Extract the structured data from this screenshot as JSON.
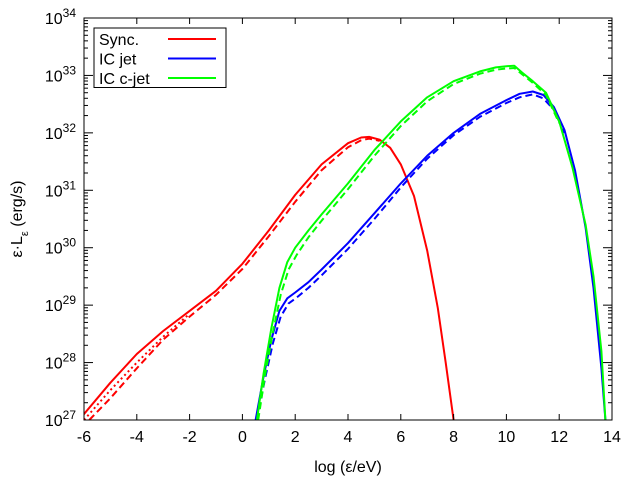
{
  "chart_data": {
    "type": "line",
    "title": "",
    "xlabel": "log (ε/eV)",
    "ylabel_main": "ε·L",
    "ylabel_sub": "ε",
    "ylabel_unit": " (erg/s)",
    "xlim": [
      -6,
      14
    ],
    "ylim_log10": [
      27,
      34
    ],
    "x_ticks": [
      -6,
      -4,
      -2,
      0,
      2,
      4,
      6,
      8,
      10,
      12,
      14
    ],
    "y_ticks_exp": [
      27,
      28,
      29,
      30,
      31,
      32,
      33,
      34
    ],
    "y_tick_base": "10",
    "legend": [
      {
        "label": "Sync.",
        "color": "#ff0000"
      },
      {
        "label": "IC jet",
        "color": "#0000ff"
      },
      {
        "label": "IC c-jet",
        "color": "#00ff00"
      }
    ],
    "series": [
      {
        "name": "Sync. solid",
        "color": "#ff0000",
        "style": "solid",
        "x": [
          -6.1,
          -5,
          -4,
          -3,
          -2,
          -1,
          0,
          1,
          2,
          3,
          4,
          4.5,
          4.8,
          5.2,
          5.6,
          6,
          6.5,
          7,
          7.4,
          7.7,
          8.0
        ],
        "log_y": [
          27.05,
          27.65,
          28.15,
          28.55,
          28.9,
          29.25,
          29.72,
          30.3,
          30.92,
          31.45,
          31.82,
          31.92,
          31.93,
          31.88,
          31.74,
          31.45,
          30.9,
          29.95,
          28.95,
          28.0,
          27.0
        ]
      },
      {
        "name": "Sync. dotted",
        "color": "#ff0000",
        "style": "dotted",
        "x": [
          -6,
          -5,
          -4,
          -3,
          -2
        ],
        "log_y": [
          27.0,
          27.52,
          28.0,
          28.45,
          28.85
        ]
      },
      {
        "name": "Sync. dashed",
        "color": "#ff0000",
        "style": "dashed",
        "x": [
          -5.8,
          -5,
          -4,
          -3,
          -2,
          -1,
          0,
          1,
          2,
          3,
          4,
          4.5,
          4.8,
          5.2
        ],
        "log_y": [
          27.0,
          27.38,
          27.9,
          28.4,
          28.8,
          29.18,
          29.63,
          30.2,
          30.8,
          31.35,
          31.75,
          31.87,
          31.9,
          31.86
        ]
      },
      {
        "name": "IC jet solid",
        "color": "#0000ff",
        "style": "solid",
        "x": [
          0.5,
          0.8,
          1.1,
          1.4,
          1.7,
          2.0,
          2.5,
          3,
          4,
          5,
          6,
          7,
          8,
          9,
          10,
          10.5,
          11,
          11.4,
          11.8,
          12.2,
          12.6,
          13.0,
          13.3,
          13.6,
          13.75
        ],
        "log_y": [
          27.0,
          27.75,
          28.4,
          28.9,
          29.12,
          29.22,
          29.4,
          29.62,
          30.08,
          30.6,
          31.12,
          31.6,
          32.0,
          32.33,
          32.57,
          32.68,
          32.72,
          32.66,
          32.45,
          32.05,
          31.35,
          30.35,
          29.3,
          27.9,
          27.0
        ]
      },
      {
        "name": "IC jet dashed",
        "color": "#0000ff",
        "style": "dashed",
        "x": [
          0.55,
          0.85,
          1.15,
          1.45,
          1.75,
          2.05,
          2.5,
          3,
          4,
          5,
          6,
          7,
          8,
          9,
          10,
          10.5,
          11,
          11.4,
          11.8,
          12.2
        ],
        "log_y": [
          27.0,
          27.7,
          28.33,
          28.8,
          29.03,
          29.13,
          29.3,
          29.52,
          29.98,
          30.5,
          31.05,
          31.55,
          31.96,
          32.28,
          32.52,
          32.62,
          32.67,
          32.6,
          32.4,
          32.0
        ]
      },
      {
        "name": "IC c-jet solid",
        "color": "#00ff00",
        "style": "solid",
        "x": [
          0.55,
          0.8,
          1.1,
          1.4,
          1.7,
          2.0,
          2.5,
          3,
          4,
          5,
          6,
          7,
          8,
          9,
          9.6,
          10,
          10.3,
          10.6,
          11,
          11.5,
          12,
          12.5,
          13,
          13.3,
          13.6,
          13.75
        ],
        "log_y": [
          27.0,
          27.8,
          28.6,
          29.3,
          29.75,
          30.0,
          30.3,
          30.58,
          31.12,
          31.7,
          32.2,
          32.62,
          32.9,
          33.07,
          33.14,
          33.16,
          33.17,
          33.05,
          32.9,
          32.7,
          32.2,
          31.4,
          30.4,
          29.5,
          28.2,
          27.0
        ]
      },
      {
        "name": "IC c-jet dashed",
        "color": "#00ff00",
        "style": "dashed",
        "x": [
          0.6,
          0.85,
          1.15,
          1.45,
          1.75,
          2.05,
          2.5,
          3,
          4,
          5,
          6,
          7,
          8,
          9,
          9.6,
          10,
          10.3,
          10.6,
          11,
          11.5,
          12
        ],
        "log_y": [
          27.0,
          27.75,
          28.52,
          29.18,
          29.62,
          29.87,
          30.18,
          30.47,
          31.02,
          31.6,
          32.12,
          32.55,
          32.85,
          33.03,
          33.1,
          33.12,
          33.13,
          33.02,
          32.87,
          32.66,
          32.17
        ]
      }
    ]
  }
}
